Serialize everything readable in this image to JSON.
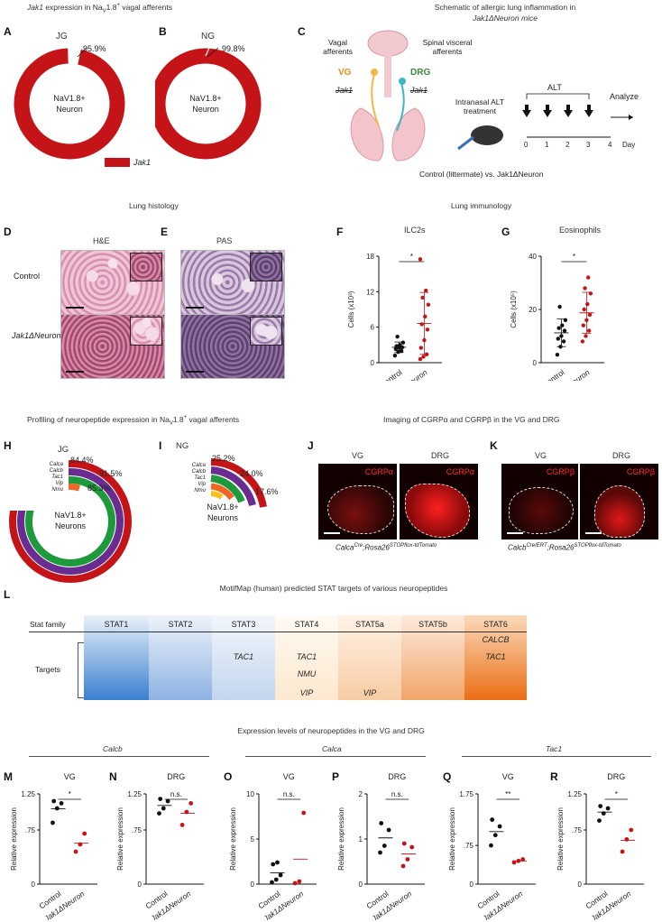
{
  "header": {
    "panelA_B_title": "Jak1 expression in NaV1.8+ vagal afferents",
    "panelC_title_line1": "Schematic of allergic lung inflammation in",
    "panelC_title_line2": "Jak1ΔNeuron mice"
  },
  "panelA": {
    "label": "A",
    "ganglion": "JG",
    "percent": "95.9%",
    "fraction": 0.959,
    "center_line1": "NaV1.8+",
    "center_line2": "Neuron"
  },
  "panelB": {
    "label": "B",
    "ganglion": "NG",
    "percent": "99.8%",
    "fraction": 0.998,
    "center_line1": "NaV1.8+",
    "center_line2": "Neuron"
  },
  "legendAB": {
    "label": "Jak1",
    "color": "#c41418"
  },
  "panelC": {
    "label": "C",
    "vagal": "Vagal afferents",
    "spinal": "Spinal visceral afferents",
    "vg": "VG",
    "drg": "DRG",
    "jak1_left": "Jak1",
    "jak1_right": "Jak1",
    "intranasal": "Intranasal ALT treatment",
    "alt": "ALT",
    "analyze": "Analyze",
    "days": [
      "0",
      "1",
      "2",
      "3",
      "4"
    ],
    "day_label": "Day",
    "footer": "Control (littermate) vs. Jak1ΔNeuron"
  },
  "section_histology": "Lung histology",
  "section_immunology": "Lung immunology",
  "panelD": {
    "label": "D",
    "stain": "H&E",
    "row1": "Control",
    "row2": "Jak1ΔNeuron"
  },
  "panelE": {
    "label": "E",
    "stain": "PAS"
  },
  "panelF": {
    "label": "F",
    "title": "ILC2s",
    "ylabel": "Cells (x10³)",
    "sig": "*"
  },
  "panelG": {
    "label": "G",
    "title": "Eosinophils",
    "ylabel": "Cells (x10⁵)",
    "sig": "*"
  },
  "section_profiling": "Profiling of neuropeptide expression in NaV1.8+ vagal afferents",
  "section_imaging": "Imaging of CGRPα and CGRPβ in the VG and DRG",
  "panelH": {
    "label": "H",
    "ganglion": "JG",
    "genes": [
      "Calca",
      "Calcb",
      "Tac1",
      "Vip",
      "Nmu"
    ],
    "pcts": [
      "84.4%",
      "91.5%",
      "85.3%"
    ],
    "center_line1": "NaV1.8+",
    "center_line2": "Neurons"
  },
  "panelI": {
    "label": "I",
    "ganglion": "NG",
    "genes": [
      "Calca",
      "Calcb",
      "Tac1",
      "Vip",
      "Nmu"
    ],
    "pcts": [
      "25.2%",
      "24.0%",
      "17.6%"
    ],
    "center_line1": "NaV1.8+",
    "center_line2": "Neurons"
  },
  "panelJ": {
    "label": "J",
    "vg": "VG",
    "drg": "DRG",
    "marker": "CGRPα",
    "caption": "CalcaCre;Rosa26STOPflox-tdTomato"
  },
  "panelK": {
    "label": "K",
    "vg": "VG",
    "drg": "DRG",
    "marker": "CGRPβ",
    "caption": "CalcbCre/ERT;Rosa26STOPflox-tdTomato"
  },
  "panelL": {
    "label": "L",
    "title": "MotifMap (human) predicted STAT targets of various neuropeptides",
    "stat_family": "Stat family",
    "targets_label": "Targets",
    "columns": [
      "STAT1",
      "STAT2",
      "STAT3",
      "STAT4",
      "STAT5a",
      "STAT5b",
      "STAT6"
    ],
    "targets": {
      "STAT3": [
        "TAC1"
      ],
      "STAT4": [
        "TAC1",
        "NMU",
        "VIP"
      ],
      "STAT5a": [
        "VIP"
      ],
      "STAT6": [
        "CALCB",
        "TAC1"
      ]
    }
  },
  "section_expression": "Expression levels of neuropeptides in the VG and DRG",
  "genes_group": [
    "Calcb",
    "Calca",
    "Tac1"
  ],
  "expr_panels": [
    {
      "label": "M",
      "title": "VG",
      "sig": "*"
    },
    {
      "label": "N",
      "title": "DRG",
      "sig": "n.s."
    },
    {
      "label": "O",
      "title": "VG",
      "sig": "n.s."
    },
    {
      "label": "P",
      "title": "DRG",
      "sig": "n.s."
    },
    {
      "label": "Q",
      "title": "VG",
      "sig": "**"
    },
    {
      "label": "R",
      "title": "DRG",
      "sig": "*"
    }
  ],
  "expr_ylabel": "Relative expression",
  "xcat_control": "Control",
  "xcat_ko": "Jak1ΔNeuron",
  "colors": {
    "red": "#c41418",
    "black": "#111111",
    "purple": "#6a2c91",
    "green": "#1e9a3c",
    "orange": "#f26522",
    "yellow": "#f7c31a"
  },
  "chart_data": [
    {
      "type": "scatter",
      "panel": "F",
      "title": "ILC2s",
      "ylabel": "Cells (x10³)",
      "categories": [
        "Control",
        "Jak1ΔNeuron"
      ],
      "yticks": [
        "0",
        "6",
        "12",
        "18"
      ],
      "series": [
        {
          "name": "Control",
          "values": [
            1.2,
            1.8,
            2.0,
            2.3,
            2.5,
            2.6,
            2.8,
            3.0,
            3.4,
            4.4
          ]
        },
        {
          "name": "Jak1ΔNeuron",
          "values": [
            0.6,
            1.0,
            1.4,
            2.5,
            3.8,
            5.6,
            6.5,
            7.8,
            9.8,
            11.0,
            12.2,
            17.5
          ]
        }
      ]
    },
    {
      "type": "scatter",
      "panel": "G",
      "title": "Eosinophils",
      "ylabel": "Cells (x10⁵)",
      "categories": [
        "Control",
        "Jak1ΔNeuron"
      ],
      "yticks": [
        "0",
        "20",
        "40"
      ],
      "ylim": [
        0,
        40
      ],
      "series": [
        {
          "name": "Control",
          "values": [
            3,
            6,
            8,
            9,
            10,
            12,
            13,
            14,
            16,
            21
          ]
        },
        {
          "name": "Jak1ΔNeuron",
          "values": [
            8,
            10,
            12,
            14,
            16,
            18,
            20,
            22,
            26,
            28,
            32
          ]
        }
      ]
    },
    {
      "type": "scatter",
      "panel": "M",
      "ylim": [
        0,
        1.25
      ],
      "yticks": [
        "0",
        ".75",
        "1.25"
      ],
      "series": [
        {
          "name": "Control",
          "values": [
            0.85,
            1.05,
            1.12,
            1.15
          ]
        },
        {
          "name": "Jak1ΔNeuron",
          "values": [
            0.45,
            0.55,
            0.7
          ]
        }
      ]
    },
    {
      "type": "scatter",
      "panel": "N",
      "ylim": [
        0,
        1.25
      ],
      "yticks": [
        "0",
        ".75",
        "1.25"
      ],
      "series": [
        {
          "name": "Control",
          "values": [
            0.98,
            1.05,
            1.15,
            1.18
          ]
        },
        {
          "name": "Jak1ΔNeuron",
          "values": [
            0.82,
            1.0,
            1.12
          ]
        }
      ]
    },
    {
      "type": "scatter",
      "panel": "O",
      "ylim": [
        0,
        10
      ],
      "yticks": [
        "0",
        "5",
        "10"
      ],
      "series": [
        {
          "name": "Control",
          "values": [
            0.2,
            0.5,
            1.0,
            2.2,
            2.4
          ]
        },
        {
          "name": "Jak1ΔNeuron",
          "values": [
            0.1,
            0.3,
            7.9
          ]
        }
      ]
    },
    {
      "type": "scatter",
      "panel": "P",
      "ylim": [
        0,
        2
      ],
      "yticks": [
        "0",
        "1",
        "2"
      ],
      "series": [
        {
          "name": "Control",
          "values": [
            0.7,
            0.85,
            1.2,
            1.35
          ]
        },
        {
          "name": "Jak1ΔNeuron",
          "values": [
            0.4,
            0.55,
            0.82,
            0.9
          ]
        }
      ]
    },
    {
      "type": "scatter",
      "panel": "Q",
      "ylim": [
        0,
        1.75
      ],
      "yticks": [
        "0",
        ".75",
        "1.75"
      ],
      "series": [
        {
          "name": "Control",
          "values": [
            0.75,
            0.95,
            1.12,
            1.25
          ]
        },
        {
          "name": "Jak1ΔNeuron",
          "values": [
            0.42,
            0.45,
            0.48
          ]
        }
      ]
    },
    {
      "type": "scatter",
      "panel": "R",
      "ylim": [
        0,
        1.25
      ],
      "yticks": [
        "0",
        ".75",
        "1.25"
      ],
      "series": [
        {
          "name": "Control",
          "values": [
            0.88,
            0.98,
            1.05,
            1.08
          ]
        },
        {
          "name": "Jak1ΔNeuron",
          "values": [
            0.45,
            0.62,
            0.75
          ]
        }
      ]
    }
  ]
}
